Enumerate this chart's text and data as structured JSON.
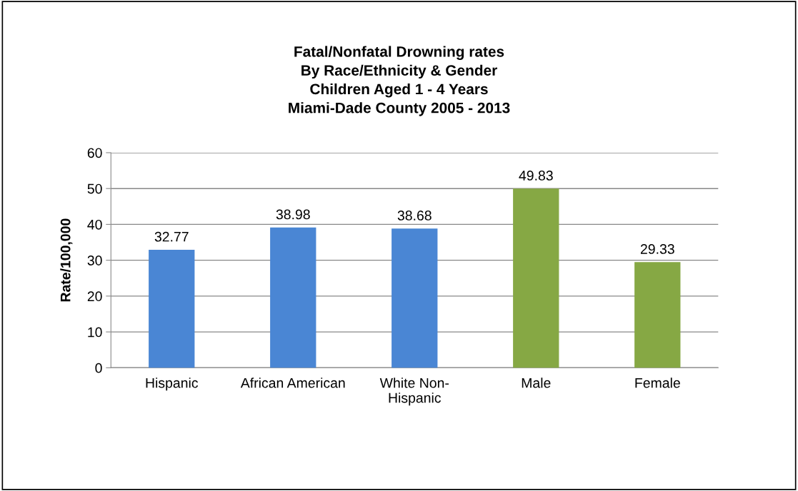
{
  "chart_data": {
    "type": "bar",
    "title": "Fatal/Nonfatal Drowning rates\nBy Race/Ethnicity & Gender\nChildren Aged 1 - 4 Years\nMiami-Dade County 2005 - 2013",
    "ylabel": "Rate/100,000",
    "categories": [
      "Hispanic",
      "African American",
      "White Non-Hispanic",
      "Male",
      "Female"
    ],
    "values": [
      32.77,
      38.98,
      38.68,
      49.83,
      29.33
    ],
    "colors": [
      "#4a86d4",
      "#4a86d4",
      "#4a86d4",
      "#86a844",
      "#86a844"
    ],
    "ylim": [
      0,
      60
    ],
    "yticks": [
      0,
      10,
      20,
      30,
      40,
      50,
      60
    ],
    "grid": "y",
    "data_labels": true
  }
}
